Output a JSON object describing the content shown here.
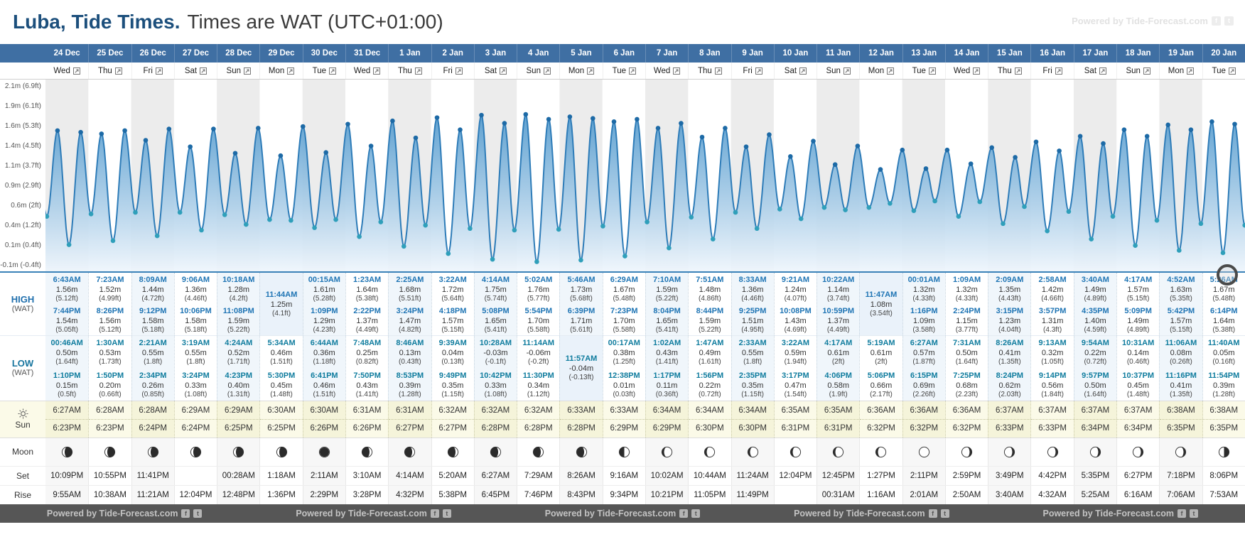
{
  "header": {
    "title": "Luba, Tide Times.",
    "subtitle": "Times are WAT (UTC+01:00)",
    "watermark": "Powered by Tide-Forecast.com"
  },
  "chart": {
    "y_axis_labels": [
      "2.1m (6.9ft)",
      "1.9m (6.1ft)",
      "1.6m (5.3ft)",
      "1.4m (4.5ft)",
      "1.1m (3.7ft)",
      "0.9m (2.9ft)",
      "0.6m (2ft)",
      "0.4m (1.2ft)",
      "0.1m (0.4ft)",
      "-0.1m (-0.4ft)"
    ]
  },
  "row_labels": {
    "high": "HIGH",
    "high_tz": "(WAT)",
    "low": "LOW",
    "low_tz": "(WAT)",
    "sun": "Sun",
    "moon": "Moon",
    "moonset": "Set",
    "moonrise": "Rise"
  },
  "footer": {
    "watermark": "Powered by Tide-Forecast.com"
  },
  "days": [
    {
      "date": "24 Dec",
      "weekday": "Wed",
      "high": [
        {
          "time": "6:43AM",
          "m": "1.56m",
          "ft": "(5.12ft)"
        },
        {
          "time": "7:44PM",
          "m": "1.54m",
          "ft": "(5.05ft)"
        }
      ],
      "low": [
        {
          "time": "00:46AM",
          "m": "0.50m",
          "ft": "(1.64ft)"
        },
        {
          "time": "1:10PM",
          "m": "0.15m",
          "ft": "(0.5ft)"
        }
      ],
      "sunrise": "6:27AM",
      "sunset": "6:23PM",
      "moon_phase": "waning-crescent",
      "moonset": "10:09PM",
      "moonrise": "9:55AM"
    },
    {
      "date": "25 Dec",
      "weekday": "Thu",
      "high": [
        {
          "time": "7:23AM",
          "m": "1.52m",
          "ft": "(4.99ft)"
        },
        {
          "time": "8:26PM",
          "m": "1.56m",
          "ft": "(5.12ft)"
        }
      ],
      "low": [
        {
          "time": "1:30AM",
          "m": "0.53m",
          "ft": "(1.73ft)"
        },
        {
          "time": "1:50PM",
          "m": "0.20m",
          "ft": "(0.66ft)"
        }
      ],
      "sunrise": "6:28AM",
      "sunset": "6:23PM",
      "moon_phase": "waning-crescent",
      "moonset": "10:55PM",
      "moonrise": "10:38AM"
    },
    {
      "date": "26 Dec",
      "weekday": "Fri",
      "high": [
        {
          "time": "8:09AM",
          "m": "1.44m",
          "ft": "(4.72ft)"
        },
        {
          "time": "9:12PM",
          "m": "1.58m",
          "ft": "(5.18ft)"
        }
      ],
      "low": [
        {
          "time": "2:21AM",
          "m": "0.55m",
          "ft": "(1.8ft)"
        },
        {
          "time": "2:34PM",
          "m": "0.26m",
          "ft": "(0.85ft)"
        }
      ],
      "sunrise": "6:28AM",
      "sunset": "6:24PM",
      "moon_phase": "waning-crescent",
      "moonset": "11:41PM",
      "moonrise": "11:21AM"
    },
    {
      "date": "27 Dec",
      "weekday": "Sat",
      "high": [
        {
          "time": "9:06AM",
          "m": "1.36m",
          "ft": "(4.46ft)"
        },
        {
          "time": "10:06PM",
          "m": "1.58m",
          "ft": "(5.18ft)"
        }
      ],
      "low": [
        {
          "time": "3:19AM",
          "m": "0.55m",
          "ft": "(1.8ft)"
        },
        {
          "time": "3:24PM",
          "m": "0.33m",
          "ft": "(1.08ft)"
        }
      ],
      "sunrise": "6:29AM",
      "sunset": "6:24PM",
      "moon_phase": "waning-crescent",
      "moonset": "",
      "moonrise": "12:04PM"
    },
    {
      "date": "28 Dec",
      "weekday": "Sun",
      "high": [
        {
          "time": "10:18AM",
          "m": "1.28m",
          "ft": "(4.2ft)"
        },
        {
          "time": "11:08PM",
          "m": "1.59m",
          "ft": "(5.22ft)"
        }
      ],
      "low": [
        {
          "time": "4:24AM",
          "m": "0.52m",
          "ft": "(1.71ft)"
        },
        {
          "time": "4:23PM",
          "m": "0.40m",
          "ft": "(1.31ft)"
        }
      ],
      "sunrise": "6:29AM",
      "sunset": "6:25PM",
      "moon_phase": "waning-crescent",
      "moonset": "00:28AM",
      "moonrise": "12:48PM"
    },
    {
      "date": "29 Dec",
      "weekday": "Mon",
      "high": [
        {
          "time": "11:44AM",
          "m": "1.25m",
          "ft": "(4.1ft)"
        }
      ],
      "low": [
        {
          "time": "5:34AM",
          "m": "0.46m",
          "ft": "(1.51ft)"
        },
        {
          "time": "5:30PM",
          "m": "0.45m",
          "ft": "(1.48ft)"
        }
      ],
      "sunrise": "6:30AM",
      "sunset": "6:25PM",
      "moon_phase": "waning-crescent",
      "moonset": "1:18AM",
      "moonrise": "1:36PM"
    },
    {
      "date": "30 Dec",
      "weekday": "Tue",
      "high": [
        {
          "time": "00:15AM",
          "m": "1.61m",
          "ft": "(5.28ft)"
        },
        {
          "time": "1:09PM",
          "m": "1.29m",
          "ft": "(4.23ft)"
        }
      ],
      "low": [
        {
          "time": "6:44AM",
          "m": "0.36m",
          "ft": "(1.18ft)"
        },
        {
          "time": "6:41PM",
          "m": "0.46m",
          "ft": "(1.51ft)"
        }
      ],
      "sunrise": "6:30AM",
      "sunset": "6:26PM",
      "moon_phase": "new",
      "moonset": "2:11AM",
      "moonrise": "2:29PM"
    },
    {
      "date": "31 Dec",
      "weekday": "Wed",
      "high": [
        {
          "time": "1:23AM",
          "m": "1.64m",
          "ft": "(5.38ft)"
        },
        {
          "time": "2:22PM",
          "m": "1.37m",
          "ft": "(4.49ft)"
        }
      ],
      "low": [
        {
          "time": "7:48AM",
          "m": "0.25m",
          "ft": "(0.82ft)"
        },
        {
          "time": "7:50PM",
          "m": "0.43m",
          "ft": "(1.41ft)"
        }
      ],
      "sunrise": "6:31AM",
      "sunset": "6:26PM",
      "moon_phase": "waxing-crescent",
      "moonset": "3:10AM",
      "moonrise": "3:28PM"
    },
    {
      "date": "1 Jan",
      "weekday": "Thu",
      "high": [
        {
          "time": "2:25AM",
          "m": "1.68m",
          "ft": "(5.51ft)"
        },
        {
          "time": "3:24PM",
          "m": "1.47m",
          "ft": "(4.82ft)"
        }
      ],
      "low": [
        {
          "time": "8:46AM",
          "m": "0.13m",
          "ft": "(0.43ft)"
        },
        {
          "time": "8:53PM",
          "m": "0.39m",
          "ft": "(1.28ft)"
        }
      ],
      "sunrise": "6:31AM",
      "sunset": "6:27PM",
      "moon_phase": "waxing-crescent",
      "moonset": "4:14AM",
      "moonrise": "4:32PM"
    },
    {
      "date": "2 Jan",
      "weekday": "Fri",
      "high": [
        {
          "time": "3:22AM",
          "m": "1.72m",
          "ft": "(5.64ft)"
        },
        {
          "time": "4:18PM",
          "m": "1.57m",
          "ft": "(5.15ft)"
        }
      ],
      "low": [
        {
          "time": "9:39AM",
          "m": "0.04m",
          "ft": "(0.13ft)"
        },
        {
          "time": "9:49PM",
          "m": "0.35m",
          "ft": "(1.15ft)"
        }
      ],
      "sunrise": "6:32AM",
      "sunset": "6:27PM",
      "moon_phase": "waxing-crescent",
      "moonset": "5:20AM",
      "moonrise": "5:38PM"
    },
    {
      "date": "3 Jan",
      "weekday": "Sat",
      "high": [
        {
          "time": "4:14AM",
          "m": "1.75m",
          "ft": "(5.74ft)"
        },
        {
          "time": "5:08PM",
          "m": "1.65m",
          "ft": "(5.41ft)"
        }
      ],
      "low": [
        {
          "time": "10:28AM",
          "m": "-0.03m",
          "ft": "(-0.1ft)"
        },
        {
          "time": "10:42PM",
          "m": "0.33m",
          "ft": "(1.08ft)"
        }
      ],
      "sunrise": "6:32AM",
      "sunset": "6:28PM",
      "moon_phase": "waxing-crescent",
      "moonset": "6:27AM",
      "moonrise": "6:45PM"
    },
    {
      "date": "4 Jan",
      "weekday": "Sun",
      "high": [
        {
          "time": "5:02AM",
          "m": "1.76m",
          "ft": "(5.77ft)"
        },
        {
          "time": "5:54PM",
          "m": "1.70m",
          "ft": "(5.58ft)"
        }
      ],
      "low": [
        {
          "time": "11:14AM",
          "m": "-0.06m",
          "ft": "(-0.2ft)"
        },
        {
          "time": "11:30PM",
          "m": "0.34m",
          "ft": "(1.12ft)"
        }
      ],
      "sunrise": "6:32AM",
      "sunset": "6:28PM",
      "moon_phase": "waxing-crescent",
      "moonset": "7:29AM",
      "moonrise": "7:46PM"
    },
    {
      "date": "5 Jan",
      "weekday": "Mon",
      "high": [
        {
          "time": "5:46AM",
          "m": "1.73m",
          "ft": "(5.68ft)"
        },
        {
          "time": "6:39PM",
          "m": "1.71m",
          "ft": "(5.61ft)"
        }
      ],
      "low": [
        {
          "time": "11:57AM",
          "m": "-0.04m",
          "ft": "(-0.13ft)"
        }
      ],
      "sunrise": "6:33AM",
      "sunset": "6:28PM",
      "moon_phase": "waxing-crescent",
      "moonset": "8:26AM",
      "moonrise": "8:43PM"
    },
    {
      "date": "6 Jan",
      "weekday": "Tue",
      "high": [
        {
          "time": "6:29AM",
          "m": "1.67m",
          "ft": "(5.48ft)"
        },
        {
          "time": "7:23PM",
          "m": "1.70m",
          "ft": "(5.58ft)"
        }
      ],
      "low": [
        {
          "time": "00:17AM",
          "m": "0.38m",
          "ft": "(1.25ft)"
        },
        {
          "time": "12:38PM",
          "m": "0.01m",
          "ft": "(0.03ft)"
        }
      ],
      "sunrise": "6:33AM",
      "sunset": "6:29PM",
      "moon_phase": "first-quarter",
      "moonset": "9:16AM",
      "moonrise": "9:34PM"
    },
    {
      "date": "7 Jan",
      "weekday": "Wed",
      "high": [
        {
          "time": "7:10AM",
          "m": "1.59m",
          "ft": "(5.22ft)"
        },
        {
          "time": "8:04PM",
          "m": "1.65m",
          "ft": "(5.41ft)"
        }
      ],
      "low": [
        {
          "time": "1:02AM",
          "m": "0.43m",
          "ft": "(1.41ft)"
        },
        {
          "time": "1:17PM",
          "m": "0.11m",
          "ft": "(0.36ft)"
        }
      ],
      "sunrise": "6:34AM",
      "sunset": "6:29PM",
      "moon_phase": "waxing-gibbous",
      "moonset": "10:02AM",
      "moonrise": "10:21PM"
    },
    {
      "date": "8 Jan",
      "weekday": "Thu",
      "high": [
        {
          "time": "7:51AM",
          "m": "1.48m",
          "ft": "(4.86ft)"
        },
        {
          "time": "8:44PM",
          "m": "1.59m",
          "ft": "(5.22ft)"
        }
      ],
      "low": [
        {
          "time": "1:47AM",
          "m": "0.49m",
          "ft": "(1.61ft)"
        },
        {
          "time": "1:56PM",
          "m": "0.22m",
          "ft": "(0.72ft)"
        }
      ],
      "sunrise": "6:34AM",
      "sunset": "6:30PM",
      "moon_phase": "waxing-gibbous",
      "moonset": "10:44AM",
      "moonrise": "11:05PM"
    },
    {
      "date": "9 Jan",
      "weekday": "Fri",
      "high": [
        {
          "time": "8:33AM",
          "m": "1.36m",
          "ft": "(4.46ft)"
        },
        {
          "time": "9:25PM",
          "m": "1.51m",
          "ft": "(4.95ft)"
        }
      ],
      "low": [
        {
          "time": "2:33AM",
          "m": "0.55m",
          "ft": "(1.8ft)"
        },
        {
          "time": "2:35PM",
          "m": "0.35m",
          "ft": "(1.15ft)"
        }
      ],
      "sunrise": "6:34AM",
      "sunset": "6:30PM",
      "moon_phase": "waxing-gibbous",
      "moonset": "11:24AM",
      "moonrise": "11:49PM"
    },
    {
      "date": "10 Jan",
      "weekday": "Sat",
      "high": [
        {
          "time": "9:21AM",
          "m": "1.24m",
          "ft": "(4.07ft)"
        },
        {
          "time": "10:08PM",
          "m": "1.43m",
          "ft": "(4.69ft)"
        }
      ],
      "low": [
        {
          "time": "3:22AM",
          "m": "0.59m",
          "ft": "(1.94ft)"
        },
        {
          "time": "3:17PM",
          "m": "0.47m",
          "ft": "(1.54ft)"
        }
      ],
      "sunrise": "6:35AM",
      "sunset": "6:31PM",
      "moon_phase": "waxing-gibbous",
      "moonset": "12:04PM",
      "moonrise": ""
    },
    {
      "date": "11 Jan",
      "weekday": "Sun",
      "high": [
        {
          "time": "10:22AM",
          "m": "1.14m",
          "ft": "(3.74ft)"
        },
        {
          "time": "10:59PM",
          "m": "1.37m",
          "ft": "(4.49ft)"
        }
      ],
      "low": [
        {
          "time": "4:17AM",
          "m": "0.61m",
          "ft": "(2ft)"
        },
        {
          "time": "4:06PM",
          "m": "0.58m",
          "ft": "(1.9ft)"
        }
      ],
      "sunrise": "6:35AM",
      "sunset": "6:31PM",
      "moon_phase": "waxing-gibbous",
      "moonset": "12:45PM",
      "moonrise": "00:31AM"
    },
    {
      "date": "12 Jan",
      "weekday": "Mon",
      "high": [
        {
          "time": "11:47AM",
          "m": "1.08m",
          "ft": "(3.54ft)"
        }
      ],
      "low": [
        {
          "time": "5:19AM",
          "m": "0.61m",
          "ft": "(2ft)"
        },
        {
          "time": "5:06PM",
          "m": "0.66m",
          "ft": "(2.17ft)"
        }
      ],
      "sunrise": "6:36AM",
      "sunset": "6:32PM",
      "moon_phase": "waxing-gibbous",
      "moonset": "1:27PM",
      "moonrise": "1:16AM"
    },
    {
      "date": "13 Jan",
      "weekday": "Tue",
      "high": [
        {
          "time": "00:01AM",
          "m": "1.32m",
          "ft": "(4.33ft)"
        },
        {
          "time": "1:16PM",
          "m": "1.09m",
          "ft": "(3.58ft)"
        }
      ],
      "low": [
        {
          "time": "6:27AM",
          "m": "0.57m",
          "ft": "(1.87ft)"
        },
        {
          "time": "6:15PM",
          "m": "0.69m",
          "ft": "(2.26ft)"
        }
      ],
      "sunrise": "6:36AM",
      "sunset": "6:32PM",
      "moon_phase": "full",
      "moonset": "2:11PM",
      "moonrise": "2:01AM"
    },
    {
      "date": "14 Jan",
      "weekday": "Wed",
      "high": [
        {
          "time": "1:09AM",
          "m": "1.32m",
          "ft": "(4.33ft)"
        },
        {
          "time": "2:24PM",
          "m": "1.15m",
          "ft": "(3.77ft)"
        }
      ],
      "low": [
        {
          "time": "7:31AM",
          "m": "0.50m",
          "ft": "(1.64ft)"
        },
        {
          "time": "7:25PM",
          "m": "0.68m",
          "ft": "(2.23ft)"
        }
      ],
      "sunrise": "6:36AM",
      "sunset": "6:32PM",
      "moon_phase": "waning-gibbous",
      "moonset": "2:59PM",
      "moonrise": "2:50AM"
    },
    {
      "date": "15 Jan",
      "weekday": "Thu",
      "high": [
        {
          "time": "2:09AM",
          "m": "1.35m",
          "ft": "(4.43ft)"
        },
        {
          "time": "3:15PM",
          "m": "1.23m",
          "ft": "(4.04ft)"
        }
      ],
      "low": [
        {
          "time": "8:26AM",
          "m": "0.41m",
          "ft": "(1.35ft)"
        },
        {
          "time": "8:24PM",
          "m": "0.62m",
          "ft": "(2.03ft)"
        }
      ],
      "sunrise": "6:37AM",
      "sunset": "6:33PM",
      "moon_phase": "waning-gibbous",
      "moonset": "3:49PM",
      "moonrise": "3:40AM"
    },
    {
      "date": "16 Jan",
      "weekday": "Fri",
      "high": [
        {
          "time": "2:58AM",
          "m": "1.42m",
          "ft": "(4.66ft)"
        },
        {
          "time": "3:57PM",
          "m": "1.31m",
          "ft": "(4.3ft)"
        }
      ],
      "low": [
        {
          "time": "9:13AM",
          "m": "0.32m",
          "ft": "(1.05ft)"
        },
        {
          "time": "9:14PM",
          "m": "0.56m",
          "ft": "(1.84ft)"
        }
      ],
      "sunrise": "6:37AM",
      "sunset": "6:33PM",
      "moon_phase": "waning-gibbous",
      "moonset": "4:42PM",
      "moonrise": "4:32AM"
    },
    {
      "date": "17 Jan",
      "weekday": "Sat",
      "high": [
        {
          "time": "3:40AM",
          "m": "1.49m",
          "ft": "(4.89ft)"
        },
        {
          "time": "4:35PM",
          "m": "1.40m",
          "ft": "(4.59ft)"
        }
      ],
      "low": [
        {
          "time": "9:54AM",
          "m": "0.22m",
          "ft": "(0.72ft)"
        },
        {
          "time": "9:57PM",
          "m": "0.50m",
          "ft": "(1.64ft)"
        }
      ],
      "sunrise": "6:37AM",
      "sunset": "6:34PM",
      "moon_phase": "waning-gibbous",
      "moonset": "5:35PM",
      "moonrise": "5:25AM"
    },
    {
      "date": "18 Jan",
      "weekday": "Sun",
      "high": [
        {
          "time": "4:17AM",
          "m": "1.57m",
          "ft": "(5.15ft)"
        },
        {
          "time": "5:09PM",
          "m": "1.49m",
          "ft": "(4.89ft)"
        }
      ],
      "low": [
        {
          "time": "10:31AM",
          "m": "0.14m",
          "ft": "(0.46ft)"
        },
        {
          "time": "10:37PM",
          "m": "0.45m",
          "ft": "(1.48ft)"
        }
      ],
      "sunrise": "6:37AM",
      "sunset": "6:34PM",
      "moon_phase": "waning-gibbous",
      "moonset": "6:27PM",
      "moonrise": "6:16AM"
    },
    {
      "date": "19 Jan",
      "weekday": "Mon",
      "high": [
        {
          "time": "4:52AM",
          "m": "1.63m",
          "ft": "(5.35ft)"
        },
        {
          "time": "5:42PM",
          "m": "1.57m",
          "ft": "(5.15ft)"
        }
      ],
      "low": [
        {
          "time": "11:06AM",
          "m": "0.08m",
          "ft": "(0.26ft)"
        },
        {
          "time": "11:16PM",
          "m": "0.41m",
          "ft": "(1.35ft)"
        }
      ],
      "sunrise": "6:38AM",
      "sunset": "6:35PM",
      "moon_phase": "waning-gibbous",
      "moonset": "7:18PM",
      "moonrise": "7:06AM"
    },
    {
      "date": "20 Jan",
      "weekday": "Tue",
      "high": [
        {
          "time": "5:26AM",
          "m": "1.67m",
          "ft": "(5.48ft)"
        },
        {
          "time": "6:14PM",
          "m": "1.64m",
          "ft": "(5.38ft)"
        }
      ],
      "low": [
        {
          "time": "11:40AM",
          "m": "0.05m",
          "ft": "(0.16ft)"
        },
        {
          "time": "11:54PM",
          "m": "0.39m",
          "ft": "(1.28ft)"
        }
      ],
      "sunrise": "6:38AM",
      "sunset": "6:35PM",
      "moon_phase": "last-quarter",
      "moonset": "8:06PM",
      "moonrise": "7:53AM"
    }
  ]
}
